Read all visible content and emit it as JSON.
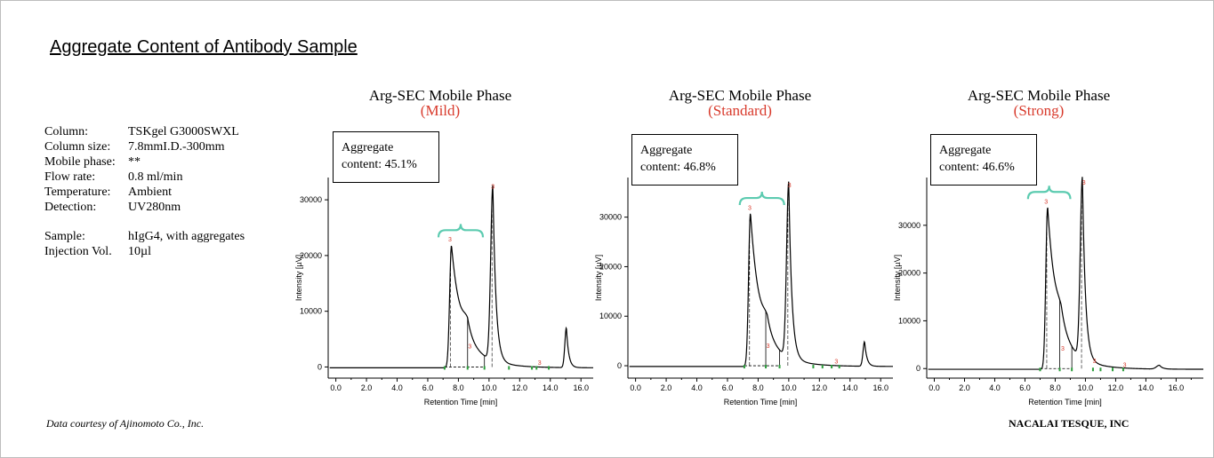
{
  "title": "Aggregate Content of Antibody Sample",
  "conditions": [
    {
      "label": "Column:",
      "value": "TSKgel G3000SWXL"
    },
    {
      "label": "Column size:",
      "value": "7.8mmI.D.-300mm"
    },
    {
      "label": "Mobile phase:",
      "value": "**"
    },
    {
      "label": "Flow rate:",
      "value": "0.8 ml/min"
    },
    {
      "label": "Temperature:",
      "value": "Ambient"
    },
    {
      "label": "Detection:",
      "value": "UV280nm"
    }
  ],
  "sample": [
    {
      "label": "Sample:",
      "value": "hIgG4, with aggregates"
    },
    {
      "label": "Injection Vol.",
      "value": "10µl"
    }
  ],
  "courtesy": "Data courtesy of Ajinomoto Co., Inc.",
  "company": "NACALAI TESQUE, INC",
  "colors": {
    "title_accent": "#d83a2c",
    "brace": "#5ccbb0",
    "trace": "#000000",
    "peak_label": "#d83a2c",
    "baseline_marker": "#2e9e3e"
  },
  "chart_data": [
    {
      "type": "line",
      "title": "Arg-SEC Mobile Phase",
      "subtitle": "(Mild)",
      "annotation": {
        "line1": "Aggregate",
        "line2": "content: 45.1%"
      },
      "xlabel": "Retention Time [min]",
      "ylabel": "Intensity [µV]",
      "xlim": [
        -0.5,
        16.8
      ],
      "ylim": [
        -2000,
        34000
      ],
      "xticks": [
        0,
        2,
        4,
        6,
        8,
        10,
        12,
        14,
        16
      ],
      "xtick_labels": [
        "0.0",
        "2.0",
        "4.0",
        "6.0",
        "8.0",
        "10.0",
        "12.0",
        "14.0",
        "16.0"
      ],
      "yticks": [
        0,
        10000,
        20000,
        30000
      ],
      "ytick_labels": [
        "0",
        "10000",
        "20000",
        "30000"
      ],
      "brace_range": [
        6.7,
        9.6
      ],
      "peaks": [
        {
          "center": 7.55,
          "height": 22000,
          "sigma_left": 0.12,
          "tau": 0.55,
          "tail_amp": 8500
        },
        {
          "center": 8.6,
          "height": 3000,
          "sigma_left": 0.3,
          "tau": 0.3,
          "tail_amp": 0
        },
        {
          "center": 10.25,
          "height": 31500,
          "sigma_left": 0.14,
          "tau": 0.2,
          "tail_amp": 0
        },
        {
          "center": 15.05,
          "height": 7200,
          "sigma_left": 0.1,
          "tau": 0.15,
          "tail_amp": 0
        }
      ],
      "peak_labels": [
        {
          "x": 7.45,
          "y": 22500,
          "text": "3"
        },
        {
          "x": 8.75,
          "y": 3300,
          "text": "3"
        },
        {
          "x": 10.25,
          "y": 32000,
          "text": "3"
        },
        {
          "x": 13.3,
          "y": 400,
          "text": "3"
        }
      ],
      "baseline_markers": [
        7.1,
        8.6,
        9.7,
        11.3,
        12.8,
        13.1,
        13.9
      ]
    },
    {
      "type": "line",
      "title": "Arg-SEC Mobile Phase",
      "subtitle": "(Standard)",
      "annotation": {
        "line1": "Aggregate",
        "line2": "content: 46.8%"
      },
      "xlabel": "Retention Time [min]",
      "ylabel": "Intensity [µV]",
      "xlim": [
        -0.5,
        16.8
      ],
      "ylim": [
        -2500,
        38000
      ],
      "xticks": [
        0,
        2,
        4,
        6,
        8,
        10,
        12,
        14,
        16
      ],
      "xtick_labels": [
        "0.0",
        "2.0",
        "4.0",
        "6.0",
        "8.0",
        "10.0",
        "12.0",
        "14.0",
        "16.0"
      ],
      "yticks": [
        0,
        10000,
        20000,
        30000
      ],
      "ytick_labels": [
        "0",
        "10000",
        "20000",
        "30000"
      ],
      "brace_range": [
        6.8,
        9.7
      ],
      "peaks": [
        {
          "center": 7.5,
          "height": 31000,
          "sigma_left": 0.12,
          "tau": 0.55,
          "tail_amp": 9500
        },
        {
          "center": 8.6,
          "height": 3200,
          "sigma_left": 0.3,
          "tau": 0.3,
          "tail_amp": 0
        },
        {
          "center": 10.0,
          "height": 35500,
          "sigma_left": 0.14,
          "tau": 0.2,
          "tail_amp": 0
        },
        {
          "center": 14.95,
          "height": 5000,
          "sigma_left": 0.1,
          "tau": 0.15,
          "tail_amp": 0
        }
      ],
      "peak_labels": [
        {
          "x": 7.45,
          "y": 31500,
          "text": "3"
        },
        {
          "x": 8.65,
          "y": 3600,
          "text": "3"
        },
        {
          "x": 10.05,
          "y": 36000,
          "text": "3"
        },
        {
          "x": 13.1,
          "y": 500,
          "text": "3"
        }
      ],
      "baseline_markers": [
        7.1,
        8.5,
        9.4,
        11.6,
        12.2,
        12.8,
        13.3
      ]
    },
    {
      "type": "line",
      "title": "Arg-SEC Mobile Phase",
      "subtitle": "(Strong)",
      "annotation": {
        "line1": "Aggregate",
        "line2": "content: 46.6%"
      },
      "xlabel": "Retention Time [min]",
      "ylabel": "Intensity [µV]",
      "xlim": [
        -0.5,
        17.8
      ],
      "ylim": [
        -2000,
        40000
      ],
      "xticks": [
        0,
        2,
        4,
        6,
        8,
        10,
        12,
        14,
        16
      ],
      "xtick_labels": [
        "0.0",
        "2.0",
        "4.0",
        "6.0",
        "8.0",
        "10.0",
        "12.0",
        "14.0",
        "16.0"
      ],
      "yticks": [
        0,
        10000,
        20000,
        30000
      ],
      "ytick_labels": [
        "0",
        "10000",
        "20000",
        "30000"
      ],
      "brace_range": [
        6.2,
        9.0
      ],
      "peaks": [
        {
          "center": 7.5,
          "height": 34000,
          "sigma_left": 0.12,
          "tau": 0.55,
          "tail_amp": 10000
        },
        {
          "center": 8.4,
          "height": 3500,
          "sigma_left": 0.3,
          "tau": 0.3,
          "tail_amp": 0
        },
        {
          "center": 9.8,
          "height": 38000,
          "sigma_left": 0.14,
          "tau": 0.2,
          "tail_amp": 0
        },
        {
          "center": 14.9,
          "height": 800,
          "sigma_left": 0.2,
          "tau": 0.2,
          "tail_amp": 0
        }
      ],
      "peak_labels": [
        {
          "x": 7.4,
          "y": 34500,
          "text": "3"
        },
        {
          "x": 8.5,
          "y": 3800,
          "text": "3"
        },
        {
          "x": 9.9,
          "y": 38500,
          "text": "3"
        },
        {
          "x": 10.6,
          "y": 1200,
          "text": "3"
        },
        {
          "x": 12.6,
          "y": 300,
          "text": "3"
        }
      ],
      "baseline_markers": [
        7.0,
        8.3,
        9.1,
        10.5,
        11.0,
        11.8,
        12.5
      ]
    }
  ]
}
